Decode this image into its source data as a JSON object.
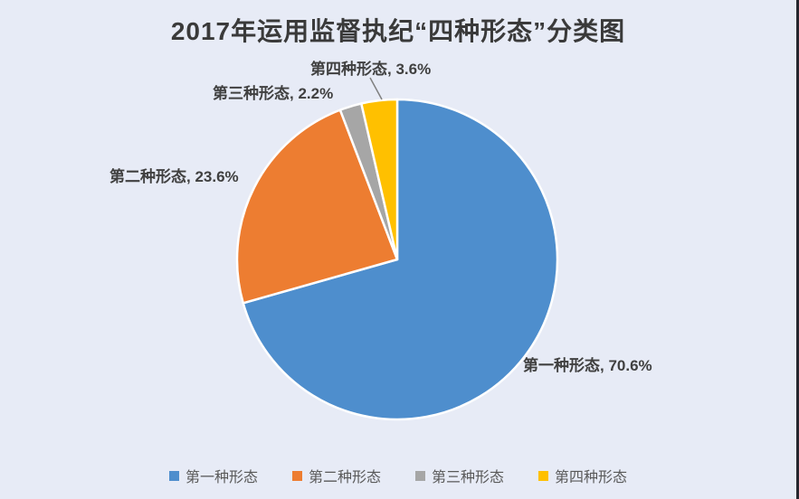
{
  "title": "2017年运用监督执纪“四种形态”分类图",
  "chart_data": {
    "type": "pie",
    "title": "2017年运用监督执纪“四种形态”分类图",
    "categories": [
      "第一种形态",
      "第二种形态",
      "第三种形态",
      "第四种形态"
    ],
    "values": [
      70.6,
      23.6,
      2.2,
      3.6
    ],
    "unit": "%",
    "colors": [
      "#4E8ECD",
      "#ED7D31",
      "#A6A6A6",
      "#FFC000"
    ],
    "start_angle_deg": 0,
    "direction": "clockwise",
    "slice_border_color": "#FFFFFF",
    "legend_position": "bottom",
    "data_labels": [
      "第一种形态, 70.6%",
      "第二种形态, 23.6%",
      "第三种形态, 2.2%",
      "第四种形态, 3.6%"
    ]
  },
  "styles": {
    "background": "#E7EBF6",
    "title_color": "#3A3A3A",
    "label_color": "#404040",
    "legend_text_color": "#595959",
    "leader_line_color": "#808080"
  }
}
